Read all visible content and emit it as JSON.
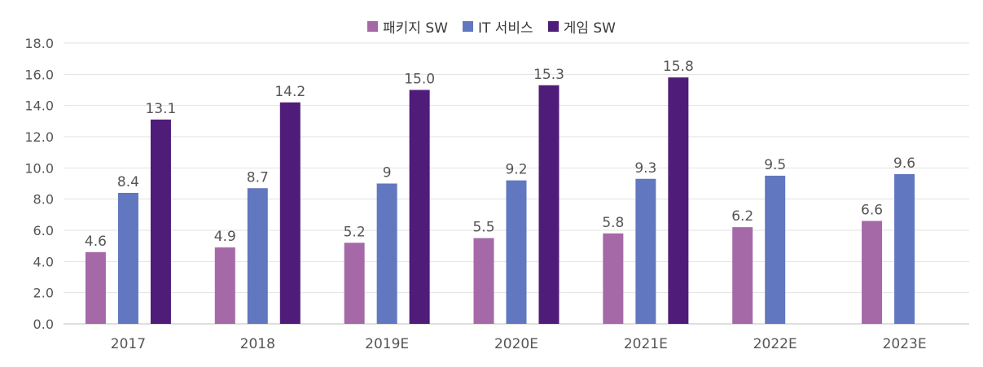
{
  "chart_data": {
    "type": "bar",
    "categories": [
      "2017",
      "2018",
      "2019E",
      "2020E",
      "2021E",
      "2022E",
      "2023E"
    ],
    "series": [
      {
        "name": "패키지 SW",
        "color": "#a569a8",
        "values": [
          4.6,
          4.9,
          5.2,
          5.5,
          5.8,
          6.2,
          6.6
        ],
        "labels": [
          "4.6",
          "4.9",
          "5.2",
          "5.5",
          "5.8",
          "6.2",
          "6.6"
        ]
      },
      {
        "name": "IT 서비스",
        "color": "#6177bf",
        "values": [
          8.4,
          8.7,
          9,
          9.2,
          9.3,
          9.5,
          9.6
        ],
        "labels": [
          "8.4",
          "8.7",
          "9",
          "9.2",
          "9.3",
          "9.5",
          "9.6"
        ]
      },
      {
        "name": "게임 SW",
        "color": "#4f1d79",
        "values": [
          13.1,
          14.2,
          15.0,
          15.3,
          15.8,
          null,
          null
        ],
        "labels": [
          "13.1",
          "14.2",
          "15.0",
          "15.3",
          "15.8",
          "",
          ""
        ]
      }
    ],
    "yticks": [
      "0.0",
      "2.0",
      "4.0",
      "6.0",
      "8.0",
      "10.0",
      "12.0",
      "14.0",
      "16.0",
      "18.0"
    ],
    "ylim": [
      0,
      18
    ],
    "grid": true,
    "legend_position": "top-center"
  }
}
